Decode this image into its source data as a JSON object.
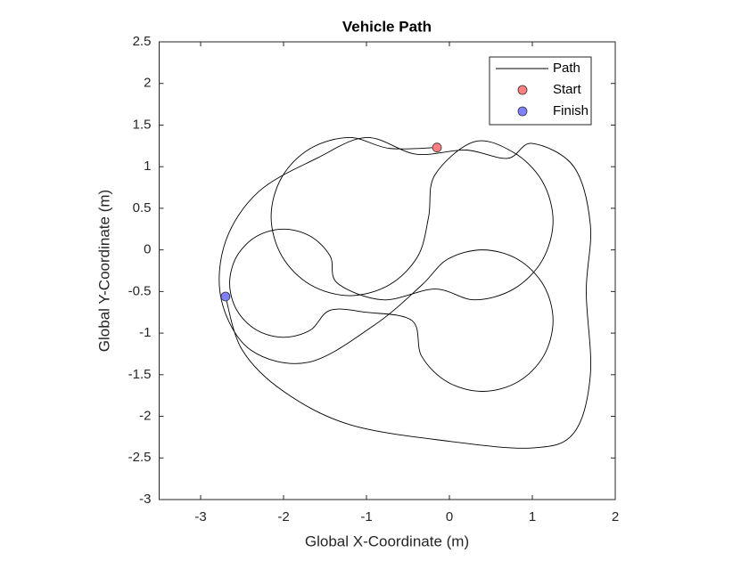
{
  "chart_data": {
    "type": "line",
    "title": "Vehicle Path",
    "x_label": "Global X-Coordinate (m)",
    "y_label": "Global Y-Coordinate (m)",
    "xlim": [
      -3.5,
      2
    ],
    "ylim": [
      -3,
      2.5
    ],
    "xticks": [
      -3,
      -2,
      -1,
      0,
      1,
      2
    ],
    "yticks": [
      -3,
      -2.5,
      -2,
      -1.5,
      -1,
      -0.5,
      0,
      0.5,
      1,
      1.5,
      2,
      2.5
    ],
    "legend": "northeast",
    "series": [
      {
        "name": "Path",
        "color": "#000000",
        "x": [
          -0.15,
          -0.725,
          -1.2,
          -1.675,
          -2.02,
          -2.15,
          -2.02,
          -1.675,
          -1.2,
          -0.725,
          -0.38,
          -0.25,
          -0.175,
          0.3,
          0.775,
          1.12,
          1.25,
          1.12,
          0.775,
          0.3,
          -0.175,
          -0.8,
          -1.35,
          -1.437,
          -1.675,
          -2.0,
          -2.325,
          -2.563,
          -2.65,
          -2.563,
          -2.325,
          -2.0,
          -1.675,
          -1.437,
          -1.0,
          -0.45,
          -0.336,
          -0.025,
          0.4,
          0.825,
          1.136,
          1.25,
          1.136,
          0.825,
          0.4,
          -0.025,
          -0.336,
          -0.9,
          -1.7,
          -2.4,
          -2.75,
          -2.7,
          -2.3,
          -1.6,
          -1.0,
          -0.4,
          0.2,
          0.7,
          1.0,
          1.5,
          1.7,
          1.65,
          1.7,
          1.5,
          1.0,
          0.0,
          -1.2,
          -2.0,
          -2.5,
          -2.7
        ],
        "values": [
          1.23,
          1.22,
          1.35,
          1.22,
          0.875,
          0.4,
          -0.075,
          -0.42,
          -0.55,
          -0.42,
          -0.075,
          0.4,
          0.9,
          1.3,
          1.17,
          0.825,
          0.35,
          -0.125,
          -0.47,
          -0.6,
          -0.47,
          -0.6,
          -0.4,
          -0.075,
          0.163,
          0.25,
          0.163,
          -0.075,
          -0.4,
          -0.725,
          -0.963,
          -1.05,
          -0.963,
          -0.725,
          -0.75,
          -0.85,
          -1.275,
          -1.586,
          -1.7,
          -1.586,
          -1.275,
          -0.85,
          -0.425,
          -0.114,
          0,
          -0.114,
          -0.425,
          -0.9,
          -1.35,
          -1.2,
          -0.6,
          0.1,
          0.7,
          1.1,
          1.35,
          1.15,
          1.2,
          1.1,
          1.28,
          1.0,
          0.3,
          -0.5,
          -1.5,
          -2.2,
          -2.38,
          -2.3,
          -2.1,
          -1.7,
          -1.2,
          -0.56
        ]
      },
      {
        "name": "Start",
        "color": "#ff7f7f",
        "marker": "circle",
        "x": [
          -0.15
        ],
        "values": [
          1.23
        ]
      },
      {
        "name": "Finish",
        "color": "#7f7fff",
        "marker": "circle",
        "x": [
          -2.7
        ],
        "values": [
          -0.56
        ]
      }
    ]
  }
}
